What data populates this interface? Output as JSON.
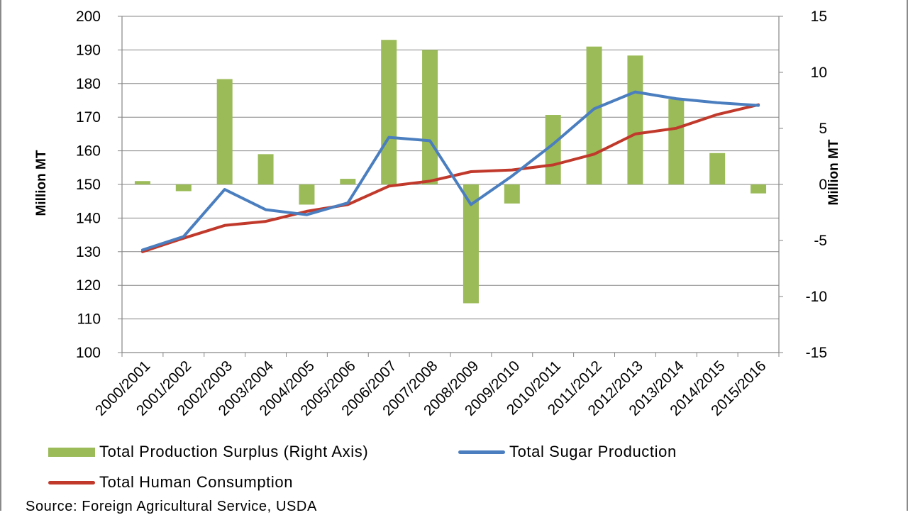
{
  "chart_data": {
    "type": "bar+line",
    "categories": [
      "2000/2001",
      "2001/2002",
      "2002/2003",
      "2003/2004",
      "2004/2005",
      "2005/2006",
      "2006/2007",
      "2007/2008",
      "2008/2009",
      "2009/2010",
      "2010/2011",
      "2011/2012",
      "2012/2013",
      "2013/2014",
      "2014/2015",
      "2015/2016"
    ],
    "series": [
      {
        "name": "Total Production Surplus (Right Axis)",
        "type": "bar",
        "axis": "right",
        "color": "#9bbb59",
        "values": [
          0.3,
          -0.6,
          9.4,
          2.7,
          -1.8,
          0.5,
          12.9,
          12.0,
          -10.6,
          -1.7,
          6.2,
          12.3,
          11.5,
          7.6,
          2.8,
          -0.8
        ]
      },
      {
        "name": "Total Sugar Production",
        "type": "line",
        "axis": "left",
        "color": "#4a7ebf",
        "values": [
          130.5,
          134.5,
          148.5,
          142.5,
          141.0,
          144.5,
          164.0,
          163.0,
          144.0,
          152.5,
          162.0,
          172.5,
          177.5,
          175.5,
          174.3,
          173.5
        ]
      },
      {
        "name": "Total Human Consumption",
        "type": "line",
        "axis": "left",
        "color": "#c0392b",
        "values": [
          130.0,
          134.0,
          137.8,
          139.0,
          142.0,
          144.0,
          149.5,
          151.0,
          153.8,
          154.3,
          155.8,
          159.0,
          165.0,
          166.7,
          170.8,
          173.7
        ]
      }
    ],
    "y_left": {
      "label": "Million MT",
      "range": [
        100,
        200
      ],
      "ticks": [
        100,
        110,
        120,
        130,
        140,
        150,
        160,
        170,
        180,
        190,
        200
      ]
    },
    "y_right": {
      "label": "Million MT",
      "range": [
        -15,
        15
      ],
      "ticks": [
        -15,
        -10,
        -5,
        0,
        5,
        10,
        15
      ],
      "tick_labels": [
        "-15",
        "-10",
        "-5",
        "0",
        "5",
        "10",
        "15"
      ]
    },
    "grid": "horizontal",
    "legend_position": "bottom",
    "source": "Source:  Foreign Agricultural Service, USDA"
  }
}
